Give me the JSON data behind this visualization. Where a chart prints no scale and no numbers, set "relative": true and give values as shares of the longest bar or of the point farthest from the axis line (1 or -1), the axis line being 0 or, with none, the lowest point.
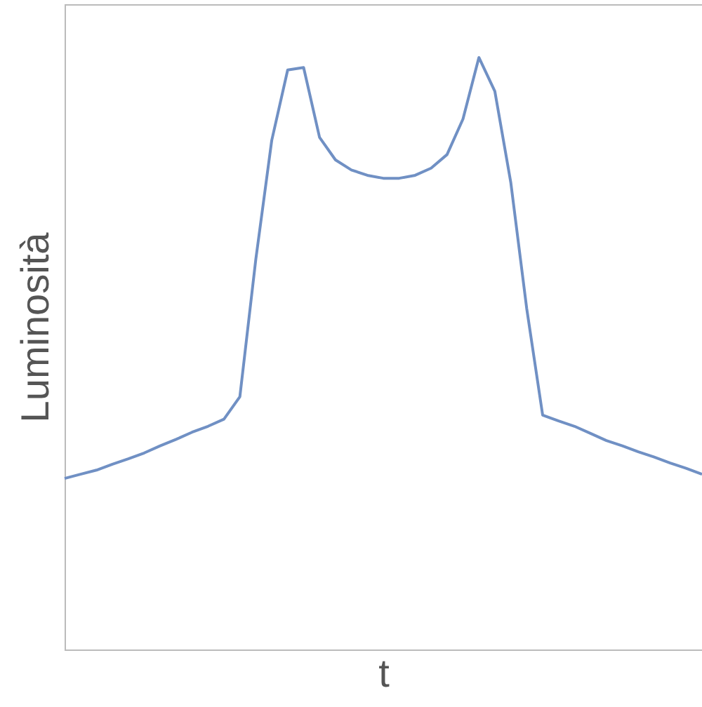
{
  "chart_data": {
    "type": "line",
    "relative": true,
    "xlabel": "t",
    "ylabel": "Luminosità",
    "categories": [
      null,
      null,
      null,
      null,
      null,
      null,
      null,
      null,
      null,
      null,
      null,
      null,
      null,
      null,
      null,
      null,
      null,
      null,
      null,
      null,
      null,
      null,
      null,
      null,
      null,
      null,
      null,
      null,
      null,
      null,
      null,
      null,
      null,
      null,
      null,
      null,
      null,
      null,
      null,
      null,
      null
    ],
    "series": [
      {
        "color": "#7090c4",
        "values": [
          0.289,
          0.296,
          0.303,
          0.313,
          0.322,
          0.332,
          0.344,
          0.355,
          0.367,
          0.377,
          0.389,
          0.427,
          0.659,
          0.86,
          0.979,
          0.983,
          0.865,
          0.827,
          0.81,
          0.801,
          0.796,
          0.796,
          0.801,
          0.813,
          0.836,
          0.896,
          1,
          0.943,
          0.789,
          0.576,
          0.396,
          0.386,
          0.377,
          0.365,
          0.353,
          0.344,
          0.334,
          0.325,
          0.315,
          0.306,
          0.296
        ]
      }
    ],
    "grid": false
  }
}
